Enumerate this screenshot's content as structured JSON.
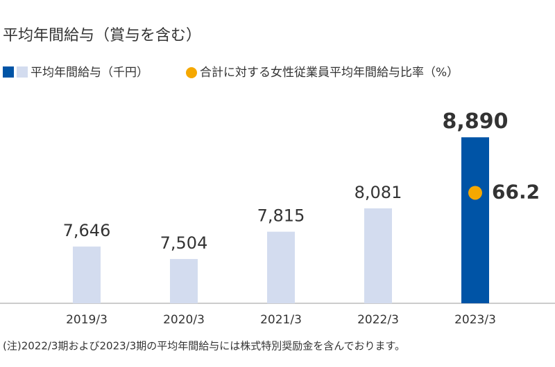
{
  "chart_data": {
    "type": "bar",
    "title": "平均年間給与（賞与を含む）",
    "categories": [
      "2019/3",
      "2020/3",
      "2021/3",
      "2022/3",
      "2023/3"
    ],
    "series": [
      {
        "name": "平均年間給与（千円）",
        "values": [
          7646,
          7504,
          7815,
          8081,
          8890
        ],
        "value_labels": [
          "7,646",
          "7,504",
          "7,815",
          "8,081",
          "8,890"
        ],
        "colors": [
          "#d3dcef",
          "#d3dcef",
          "#d3dcef",
          "#d3dcef",
          "#0054a6"
        ],
        "label_colors": [
          "#333333",
          "#333333",
          "#333333",
          "#333333",
          "#0054a6"
        ]
      },
      {
        "name": "合計に対する女性従業員平均年間給与比率（%）",
        "color": "#f5a800",
        "axis": "y2",
        "values": [
          null,
          null,
          null,
          null,
          66.2
        ]
      }
    ],
    "ylim": [
      7000,
      8900
    ],
    "y2lim": [
      0,
      100
    ],
    "note": "(注)2022/3期および2023/3期の平均年間給与には株式特別奨励金を含んでおります。"
  }
}
